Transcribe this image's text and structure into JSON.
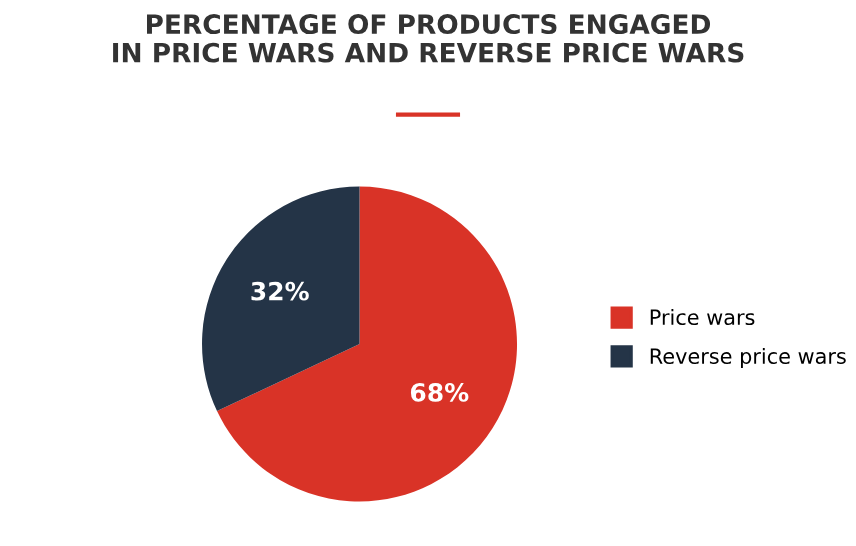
{
  "chart_data": {
    "type": "pie",
    "title": "PERCENTAGE OF PRODUCTS ENGAGED\nIN PRICE WARS AND REVERSE PRICE WARS",
    "categories": [
      "Price wars",
      "Reverse price wars"
    ],
    "values": [
      68,
      32
    ],
    "colors": [
      "#d93327",
      "#243447"
    ],
    "value_labels": [
      "68%",
      "32%"
    ],
    "legend": "right"
  }
}
